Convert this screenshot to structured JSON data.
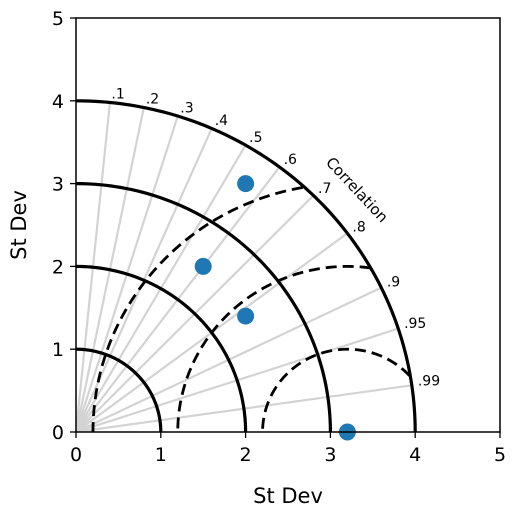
{
  "chart_data": {
    "type": "scatter",
    "subtype": "taylor-diagram",
    "xlabel": "St Dev",
    "ylabel": "St Dev",
    "xlim": [
      0,
      5
    ],
    "ylim": [
      0,
      5
    ],
    "x_ticks": [
      0,
      1,
      2,
      3,
      4,
      5
    ],
    "y_ticks": [
      0,
      1,
      2,
      3,
      4,
      5
    ],
    "correlation_title": "Correlation",
    "correlation_ticks": [
      0.1,
      0.2,
      0.3,
      0.4,
      0.5,
      0.6,
      0.7,
      0.8,
      0.9,
      0.95,
      0.99
    ],
    "correlation_tick_labels": [
      ".1",
      ".2",
      ".3",
      ".4",
      ".5",
      ".6",
      ".7",
      ".8",
      ".9",
      ".95",
      ".99"
    ],
    "std_dev_arcs": [
      1,
      2,
      3,
      4
    ],
    "reference_std": 3.2,
    "rms_arcs": [
      1,
      2,
      3
    ],
    "points": [
      {
        "x": 2.0,
        "y": 3.0
      },
      {
        "x": 1.5,
        "y": 2.0
      },
      {
        "x": 2.0,
        "y": 1.4
      },
      {
        "x": 3.2,
        "y": 0.0
      }
    ],
    "point_color": "#1f77b4",
    "grid_color": "#d3d3d3"
  }
}
